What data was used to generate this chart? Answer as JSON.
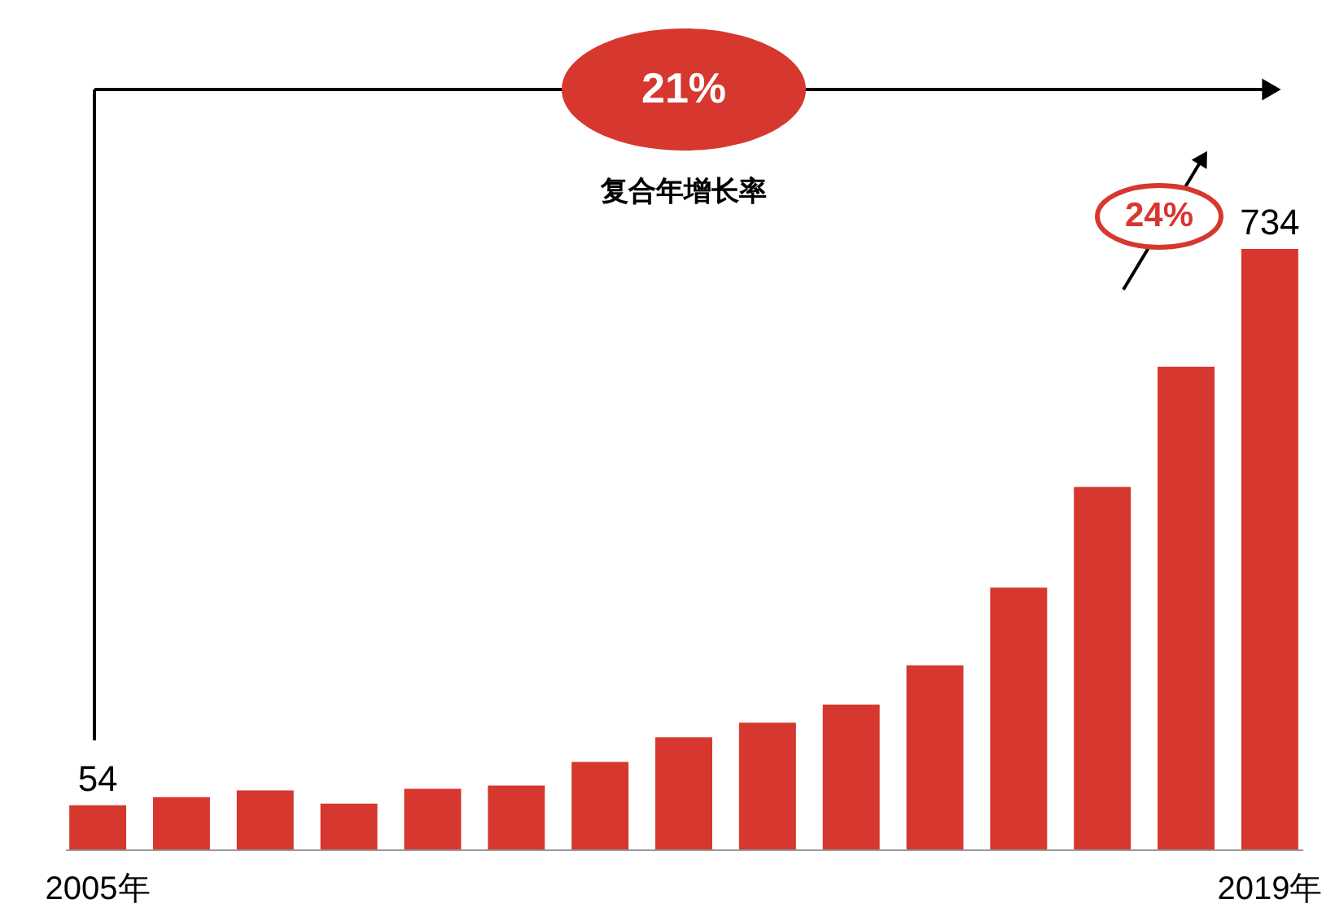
{
  "chart_data": {
    "type": "bar",
    "categories": [
      "2005年",
      null,
      null,
      null,
      null,
      null,
      null,
      null,
      null,
      null,
      null,
      null,
      null,
      null,
      "2019年"
    ],
    "values": [
      54,
      64,
      72,
      56,
      74,
      78,
      107,
      137,
      155,
      177,
      225,
      320,
      443,
      590,
      734
    ],
    "value_labels": [
      "54",
      null,
      null,
      null,
      null,
      null,
      null,
      null,
      null,
      null,
      null,
      null,
      null,
      null,
      "734"
    ],
    "color": "#d6372e",
    "annotations": [
      "21%",
      "复合年增长率",
      "24%"
    ],
    "data_labels": false
  }
}
